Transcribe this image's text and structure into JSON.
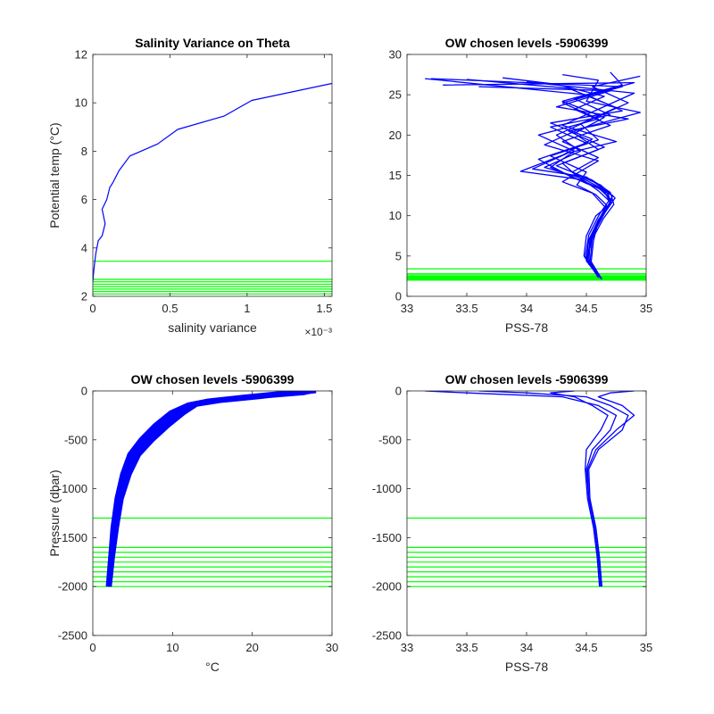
{
  "colors": {
    "profile": "#0000ff",
    "levels": "#00ff00",
    "axes": "#262626"
  },
  "chart_data": [
    {
      "id": "tl",
      "type": "line",
      "title": "Salinity Variance on Theta",
      "xlabel": "salinity variance",
      "ylabel": "Potential temp (°C)",
      "x_exponent_label": "×10⁻³",
      "xlim": [
        0,
        0.00155
      ],
      "ylim": [
        2,
        12
      ],
      "xticks": [
        0,
        0.0005,
        0.001,
        0.0015
      ],
      "xticklabels": [
        "0",
        "0.5",
        "1",
        "1.5"
      ],
      "yticks": [
        2,
        4,
        6,
        8,
        10,
        12
      ],
      "yticklabels": [
        "2",
        "4",
        "6",
        "8",
        "10",
        "12"
      ],
      "series": [
        {
          "kind": "profile",
          "x": [
            0.0,
            5e-06,
            1.2e-05,
            2e-05,
            3.5e-05,
            6e-05,
            8e-05,
            6e-05,
            9e-05,
            0.00011,
            0.00013,
            0.00017,
            0.00024,
            0.00042,
            0.00055,
            0.00085,
            0.00103,
            0.00155
          ],
          "y": [
            2.6,
            3.0,
            3.4,
            3.8,
            4.3,
            4.5,
            5.0,
            5.6,
            6.0,
            6.5,
            6.7,
            7.2,
            7.8,
            8.3,
            8.9,
            9.45,
            10.1,
            10.8
          ]
        }
      ],
      "hlines": [
        3.45,
        2.7,
        2.6,
        2.5,
        2.4,
        2.3,
        2.2,
        2.1
      ]
    },
    {
      "id": "tr",
      "type": "line",
      "title": "OW chosen levels -5906399",
      "xlabel": "PSS-78",
      "ylabel": "",
      "xlim": [
        33,
        35
      ],
      "ylim": [
        0,
        30
      ],
      "xticks": [
        33,
        33.5,
        34,
        34.5,
        35
      ],
      "xticklabels": [
        "33",
        "33.5",
        "34",
        "34.5",
        "35"
      ],
      "yticks": [
        0,
        5,
        10,
        15,
        20,
        25,
        30
      ],
      "yticklabels": [
        "0",
        "5",
        "10",
        "15",
        "20",
        "25",
        "30"
      ],
      "series": [
        {
          "kind": "profile",
          "x": [
            34.6,
            34.5,
            34.52,
            34.6,
            34.7,
            34.68,
            34.5,
            34.2,
            34.4,
            34.1,
            34.6,
            34.3,
            34.8,
            33.2
          ],
          "y": [
            2.5,
            4.5,
            7,
            9.5,
            11.5,
            13,
            14,
            16,
            18,
            20,
            22,
            24,
            26,
            27
          ]
        },
        {
          "kind": "profile",
          "x": [
            34.62,
            34.53,
            34.55,
            34.62,
            34.72,
            34.6,
            34.35,
            34.1,
            34.5,
            34.2,
            34.7,
            34.4,
            34.9,
            33.3
          ],
          "y": [
            2.2,
            4.2,
            7.2,
            9.8,
            11.8,
            13.5,
            15,
            17,
            19,
            21,
            22.5,
            24.5,
            26.5,
            26.2
          ]
        },
        {
          "kind": "profile",
          "x": [
            34.58,
            34.48,
            34.5,
            34.58,
            34.68,
            34.72,
            34.45,
            33.95,
            34.3,
            34.55,
            34.2,
            34.8,
            34.5,
            33.15
          ],
          "y": [
            2.8,
            5.0,
            7.5,
            10.0,
            11.2,
            12.5,
            14.5,
            15.5,
            17.5,
            19.5,
            21.5,
            23,
            25,
            27.0
          ]
        },
        {
          "kind": "profile",
          "x": [
            34.6,
            34.5,
            34.56,
            34.66,
            34.74,
            34.62,
            34.4,
            34.3,
            34.65,
            34.35,
            34.85,
            34.25,
            34.7,
            33.6
          ],
          "y": [
            2.4,
            4.8,
            7.8,
            10.5,
            12.2,
            13.8,
            15.2,
            16.5,
            18.5,
            20.5,
            22,
            23.5,
            25.5,
            26.0
          ]
        },
        {
          "kind": "profile",
          "x": [
            34.61,
            34.52,
            34.53,
            34.6,
            34.66,
            34.55,
            34.3,
            34.6,
            34.15,
            34.45,
            34.95,
            34.5,
            34.6,
            34.3
          ],
          "y": [
            2.6,
            4.0,
            6.8,
            9.2,
            11.0,
            12.8,
            14.2,
            16.8,
            18.8,
            20.8,
            22.8,
            24.2,
            26.8,
            27.5
          ]
        },
        {
          "kind": "profile",
          "x": [
            34.6,
            34.51,
            34.54,
            34.63,
            34.71,
            34.66,
            34.5,
            34.05,
            34.35,
            34.75,
            34.3,
            34.6,
            34.9,
            34.0
          ],
          "y": [
            2.3,
            4.6,
            7.4,
            9.9,
            11.6,
            13.2,
            14.8,
            15.8,
            17.8,
            19.2,
            21.2,
            23.2,
            25.2,
            26.6
          ]
        },
        {
          "kind": "profile",
          "x": [
            34.6,
            34.5,
            34.55,
            34.64,
            34.73,
            34.7,
            34.55,
            34.25,
            34.6,
            34.4,
            34.65,
            34.3,
            34.8,
            34.7
          ],
          "y": [
            2.5,
            4.4,
            7.1,
            9.6,
            11.4,
            12.9,
            14.4,
            16.2,
            18.2,
            20.2,
            22.2,
            24.2,
            26.2,
            27.8
          ]
        },
        {
          "kind": "profile",
          "x": [
            34.63,
            34.54,
            34.56,
            34.6,
            34.67,
            34.58,
            34.42,
            34.5,
            34.2,
            34.6,
            34.45,
            34.75,
            34.35,
            33.5
          ],
          "y": [
            2.1,
            4.3,
            6.9,
            9.4,
            11.3,
            12.6,
            13.8,
            15.4,
            17.4,
            19.4,
            21.4,
            23.4,
            25.8,
            26.9
          ]
        },
        {
          "kind": "profile",
          "x": [
            34.59,
            34.49,
            34.52,
            34.61,
            34.69,
            34.64,
            34.47,
            34.15,
            34.45,
            34.25,
            34.55,
            34.85,
            34.55,
            34.95
          ],
          "y": [
            2.7,
            4.9,
            7.6,
            10.2,
            11.9,
            13.3,
            14.6,
            16.0,
            18.0,
            20.0,
            22.0,
            24.0,
            26.0,
            27.3
          ]
        },
        {
          "kind": "profile",
          "x": [
            34.6,
            34.52,
            34.53,
            34.62,
            34.7,
            34.6,
            34.38,
            34.6,
            34.3,
            34.7,
            34.4,
            34.65,
            34.25,
            33.8
          ],
          "y": [
            2.5,
            4.7,
            7.3,
            9.7,
            11.7,
            13.1,
            15.4,
            17.2,
            19.2,
            21.2,
            23.2,
            24.8,
            26.3,
            27.1
          ]
        }
      ],
      "hlines": [
        3.4,
        2.8,
        2.65,
        2.5,
        2.4,
        2.3,
        2.2,
        2.1,
        2.0
      ]
    },
    {
      "id": "bl",
      "type": "line",
      "title": "OW chosen levels -5906399",
      "xlabel": "°C",
      "ylabel": "Pressure (dbar)",
      "xlim": [
        0,
        30
      ],
      "ylim": [
        -2500,
        0
      ],
      "xticks": [
        0,
        10,
        20,
        30
      ],
      "xticklabels": [
        "0",
        "10",
        "20",
        "30"
      ],
      "yticks": [
        -2500,
        -2000,
        -1500,
        -1000,
        -500,
        0
      ],
      "yticklabels": [
        "-2500",
        "-2000",
        "-1500",
        "-1000",
        "-500",
        "0"
      ],
      "series": [
        {
          "kind": "profile",
          "x": [
            2.0,
            2.3,
            2.7,
            3.2,
            4.0,
            5.0,
            6.5,
            8.5,
            10.5,
            12.5,
            15.0,
            20.0,
            26.0,
            28.0
          ],
          "y": [
            -2000,
            -1700,
            -1400,
            -1100,
            -850,
            -650,
            -500,
            -350,
            -220,
            -140,
            -100,
            -60,
            -20,
            0
          ]
        },
        {
          "kind": "profile",
          "x": [
            2.1,
            2.5,
            3.0,
            3.6,
            4.6,
            5.8,
            7.5,
            9.5,
            11.5,
            13.0,
            16.0,
            21.0,
            25.0,
            27.0
          ],
          "y": [
            -2000,
            -1700,
            -1400,
            -1100,
            -850,
            -650,
            -500,
            -350,
            -220,
            -140,
            -100,
            -60,
            -20,
            0
          ]
        },
        {
          "kind": "profile",
          "x": [
            1.9,
            2.2,
            2.5,
            3.0,
            3.7,
            4.6,
            6.0,
            7.8,
            9.8,
            12.0,
            14.5,
            19.0,
            24.0,
            26.0
          ],
          "y": [
            -2000,
            -1700,
            -1400,
            -1100,
            -850,
            -650,
            -500,
            -350,
            -220,
            -140,
            -100,
            -60,
            -20,
            0
          ]
        },
        {
          "kind": "profile",
          "x": [
            2.0,
            2.4,
            2.8,
            3.4,
            4.3,
            5.4,
            7.0,
            9.0,
            11.0,
            12.8,
            15.5,
            20.5,
            26.5,
            27.5
          ],
          "y": [
            -2000,
            -1700,
            -1400,
            -1100,
            -850,
            -650,
            -500,
            -350,
            -220,
            -140,
            -100,
            -60,
            -20,
            0
          ]
        }
      ],
      "hlines": [
        -1300,
        -1600,
        -1650,
        -1700,
        -1750,
        -1800,
        -1850,
        -1900,
        -1950,
        -2000
      ]
    },
    {
      "id": "br",
      "type": "line",
      "title": "OW chosen levels -5906399",
      "xlabel": "PSS-78",
      "ylabel": "",
      "xlim": [
        33,
        35
      ],
      "ylim": [
        -2500,
        0
      ],
      "xticks": [
        33,
        33.5,
        34,
        34.5,
        35
      ],
      "xticklabels": [
        "33",
        "33.5",
        "34",
        "34.5",
        "35"
      ],
      "yticks": [
        -2500,
        -2000,
        -1500,
        -1000,
        -500,
        0
      ],
      "yticklabels": [
        "-2500",
        "-2000",
        "-1500",
        "-1000",
        "-500",
        "0"
      ],
      "series": [
        {
          "kind": "profile",
          "x": [
            34.62,
            34.6,
            34.57,
            34.52,
            34.5,
            34.55,
            34.7,
            34.75,
            34.6,
            34.3,
            33.5,
            33.15
          ],
          "y": [
            -2000,
            -1700,
            -1400,
            -1100,
            -800,
            -600,
            -400,
            -250,
            -150,
            -60,
            -20,
            0
          ]
        },
        {
          "kind": "profile",
          "x": [
            34.63,
            34.61,
            34.58,
            34.53,
            34.52,
            34.6,
            34.8,
            34.85,
            34.7,
            34.5,
            34.0,
            33.6
          ],
          "y": [
            -2000,
            -1700,
            -1400,
            -1100,
            -800,
            -600,
            -400,
            -250,
            -150,
            -60,
            -20,
            0
          ]
        },
        {
          "kind": "profile",
          "x": [
            34.61,
            34.59,
            34.56,
            34.51,
            34.49,
            34.5,
            34.62,
            34.68,
            34.55,
            34.4,
            34.2,
            34.4
          ],
          "y": [
            -2000,
            -1700,
            -1400,
            -1100,
            -800,
            -600,
            -400,
            -250,
            -150,
            -60,
            -20,
            0
          ]
        },
        {
          "kind": "profile",
          "x": [
            34.62,
            34.6,
            34.57,
            34.52,
            34.51,
            34.58,
            34.75,
            34.9,
            34.8,
            34.6,
            34.7,
            34.9
          ],
          "y": [
            -2000,
            -1700,
            -1400,
            -1100,
            -800,
            -600,
            -400,
            -250,
            -150,
            -60,
            -20,
            0
          ]
        }
      ],
      "hlines": [
        -1300,
        -1600,
        -1650,
        -1700,
        -1750,
        -1800,
        -1850,
        -1900,
        -1950,
        -2000
      ]
    }
  ]
}
